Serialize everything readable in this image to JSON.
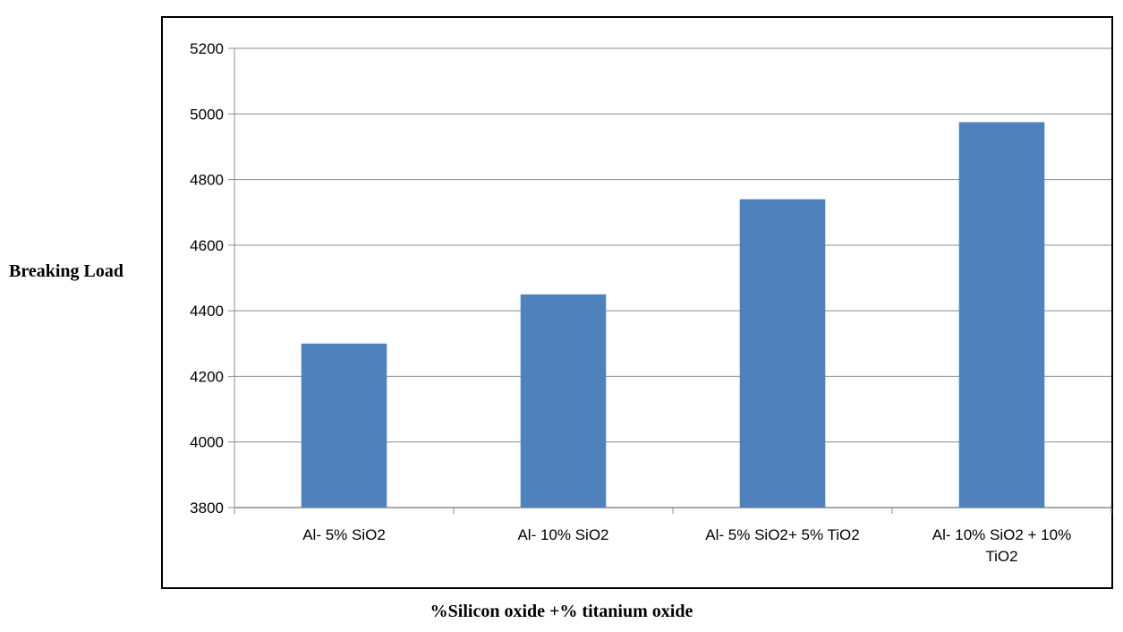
{
  "chart_data": {
    "type": "bar",
    "categories": [
      "Al- 5% SiO2",
      "Al- 10% SiO2",
      "Al- 5% SiO2+ 5% TiO2",
      "Al- 10% SiO2 + 10% TiO2"
    ],
    "category_lines": [
      [
        "Al- 5% SiO2"
      ],
      [
        "Al- 10% SiO2"
      ],
      [
        "Al- 5% SiO2+ 5% TiO2"
      ],
      [
        "Al- 10% SiO2 + 10%",
        "TiO2"
      ]
    ],
    "values": [
      4300,
      4450,
      4740,
      4975
    ],
    "xlabel": "%Silicon oxide +% titanium oxide",
    "ylabel": "Breaking Load",
    "ylim": [
      3800,
      5200
    ],
    "yticks": [
      3800,
      4000,
      4200,
      4400,
      4600,
      4800,
      5000,
      5200
    ],
    "grid": true,
    "bar_color": "#4f81bd",
    "legend": "none"
  }
}
